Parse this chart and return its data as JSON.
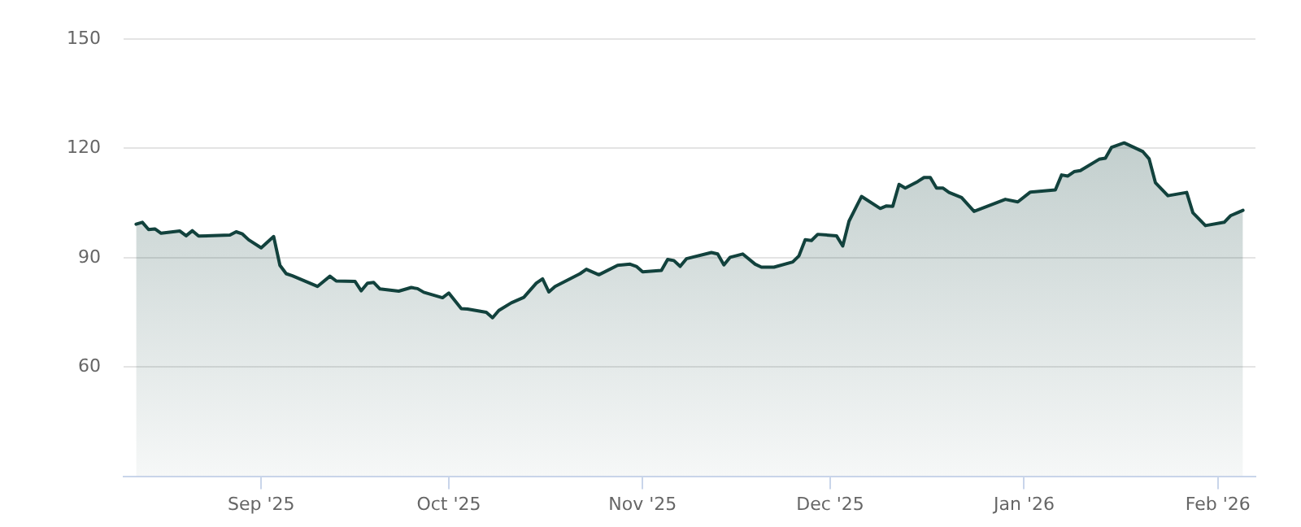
{
  "chart_data": {
    "type": "area",
    "x": [
      "2025-08-12",
      "2025-08-13",
      "2025-08-14",
      "2025-08-15",
      "2025-08-16",
      "2025-08-19",
      "2025-08-20",
      "2025-08-21",
      "2025-08-22",
      "2025-08-27",
      "2025-08-28",
      "2025-08-29",
      "2025-08-30",
      "2025-09-01",
      "2025-09-03",
      "2025-09-04",
      "2025-09-05",
      "2025-09-06",
      "2025-09-10",
      "2025-09-12",
      "2025-09-13",
      "2025-09-16",
      "2025-09-17",
      "2025-09-18",
      "2025-09-19",
      "2025-09-20",
      "2025-09-23",
      "2025-09-25",
      "2025-09-26",
      "2025-09-27",
      "2025-09-30",
      "2025-10-01",
      "2025-10-03",
      "2025-10-04",
      "2025-10-07",
      "2025-10-08",
      "2025-10-09",
      "2025-10-11",
      "2025-10-13",
      "2025-10-15",
      "2025-10-16",
      "2025-10-17",
      "2025-10-18",
      "2025-10-22",
      "2025-10-23",
      "2025-10-25",
      "2025-10-28",
      "2025-10-30",
      "2025-10-31",
      "2025-11-01",
      "2025-11-04",
      "2025-11-05",
      "2025-11-06",
      "2025-11-07",
      "2025-11-08",
      "2025-11-12",
      "2025-11-13",
      "2025-11-14",
      "2025-11-15",
      "2025-11-17",
      "2025-11-19",
      "2025-11-20",
      "2025-11-22",
      "2025-11-25",
      "2025-11-26",
      "2025-11-27",
      "2025-11-28",
      "2025-11-29",
      "2025-12-02",
      "2025-12-03",
      "2025-12-04",
      "2025-12-06",
      "2025-12-09",
      "2025-12-10",
      "2025-12-11",
      "2025-12-12",
      "2025-12-13",
      "2025-12-15",
      "2025-12-16",
      "2025-12-17",
      "2025-12-18",
      "2025-12-19",
      "2025-12-20",
      "2025-12-22",
      "2025-12-24",
      "2025-12-29",
      "2025-12-31",
      "2026-01-02",
      "2026-01-06",
      "2026-01-07",
      "2026-01-08",
      "2026-01-09",
      "2026-01-10",
      "2026-01-13",
      "2026-01-14",
      "2026-01-15",
      "2026-01-17",
      "2026-01-20",
      "2026-01-21",
      "2026-01-22",
      "2026-01-24",
      "2026-01-27",
      "2026-01-28",
      "2026-01-30",
      "2026-02-02",
      "2026-02-03",
      "2026-02-05"
    ],
    "series": [
      {
        "color": "#12423d",
        "values": [
          99.2,
          99.7,
          97.7,
          97.9,
          96.7,
          97.3,
          96.0,
          97.4,
          95.9,
          96.2,
          97.1,
          96.5,
          94.9,
          92.7,
          95.8,
          87.9,
          85.6,
          85.0,
          82.1,
          84.9,
          83.6,
          83.5,
          80.9,
          83.0,
          83.2,
          81.4,
          80.8,
          81.8,
          81.5,
          80.5,
          79.0,
          80.3,
          76.0,
          75.9,
          75.0,
          73.5,
          75.5,
          77.6,
          79.1,
          83.0,
          84.2,
          80.6,
          82.1,
          85.6,
          86.8,
          85.3,
          87.9,
          88.2,
          87.6,
          86.1,
          86.5,
          89.5,
          89.2,
          87.6,
          89.7,
          91.4,
          91.0,
          88.0,
          90.1,
          91.0,
          88.2,
          87.4,
          87.4,
          88.8,
          90.5,
          94.9,
          94.7,
          96.4,
          96.0,
          93.2,
          100.0,
          106.8,
          103.5,
          104.2,
          104.1,
          110.1,
          109.1,
          110.9,
          112.0,
          112.0,
          109.1,
          109.1,
          107.9,
          106.5,
          102.7,
          106.0,
          105.3,
          108.0,
          108.6,
          112.7,
          112.4,
          113.6,
          113.9,
          117.0,
          117.3,
          120.3,
          121.5,
          119.1,
          117.1,
          110.6,
          107.0,
          107.9,
          102.3,
          98.8,
          99.7,
          101.5,
          103.0
        ]
      }
    ],
    "xlim": [
      "2025-08-10",
      "2026-02-07"
    ],
    "xticks": [
      {
        "value": "2025-09-01",
        "label": "Sep '25"
      },
      {
        "value": "2025-10-01",
        "label": "Oct '25"
      },
      {
        "value": "2025-11-01",
        "label": "Nov '25"
      },
      {
        "value": "2025-12-01",
        "label": "Dec '25"
      },
      {
        "value": "2026-01-01",
        "label": "Jan '26"
      },
      {
        "value": "2026-02-01",
        "label": "Feb '26"
      }
    ],
    "ylim": [
      30,
      150
    ],
    "yticks": [
      60,
      90,
      120,
      150
    ],
    "grid": "y",
    "legend": false
  }
}
